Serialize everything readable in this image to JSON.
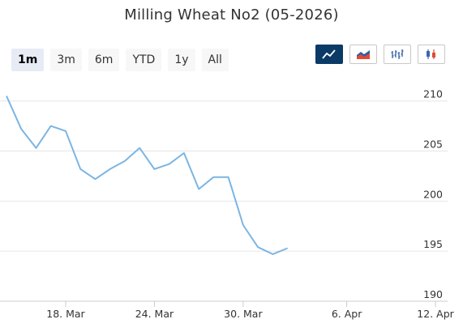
{
  "chart_data": {
    "type": "line",
    "title": "Milling Wheat No2 (05-2026)",
    "xlabel": "",
    "ylabel": "",
    "ylim": [
      190,
      212
    ],
    "yticks": [
      190,
      195,
      200,
      205,
      210
    ],
    "xticks": [
      {
        "label": "18. Mar",
        "x": 18
      },
      {
        "label": "24. Mar",
        "x": 24
      },
      {
        "label": "30. Mar",
        "x": 30
      },
      {
        "label": "6. Apr",
        "x": 37
      },
      {
        "label": "12. Apr",
        "x": 43
      }
    ],
    "xlim": [
      14,
      43.6
    ],
    "series": [
      {
        "color": "#7cb5e2",
        "points": [
          {
            "x": 14,
            "y": 210.5
          },
          {
            "x": 15,
            "y": 207.2
          },
          {
            "x": 16,
            "y": 205.3
          },
          {
            "x": 17,
            "y": 207.5
          },
          {
            "x": 18,
            "y": 207.0
          },
          {
            "x": 19,
            "y": 203.2
          },
          {
            "x": 20,
            "y": 202.2
          },
          {
            "x": 21,
            "y": 203.2
          },
          {
            "x": 22,
            "y": 204.0
          },
          {
            "x": 23,
            "y": 205.3
          },
          {
            "x": 24,
            "y": 203.2
          },
          {
            "x": 25,
            "y": 203.7
          },
          {
            "x": 26,
            "y": 204.8
          },
          {
            "x": 27,
            "y": 201.2
          },
          {
            "x": 28,
            "y": 202.4
          },
          {
            "x": 29,
            "y": 202.4
          },
          {
            "x": 30,
            "y": 197.6
          },
          {
            "x": 31,
            "y": 195.4
          },
          {
            "x": 32,
            "y": 194.7
          },
          {
            "x": 33,
            "y": 195.3
          }
        ]
      }
    ],
    "grid": true,
    "legend": "none"
  },
  "range_selector": {
    "buttons": [
      "1m",
      "3m",
      "6m",
      "YTD",
      "1y",
      "All"
    ],
    "selected": "1m"
  },
  "chart_types": [
    {
      "icon": "line-chart-icon",
      "active": true
    },
    {
      "icon": "area-chart-icon",
      "active": false
    },
    {
      "icon": "ohlc-chart-icon",
      "active": false
    },
    {
      "icon": "candlestick-chart-icon",
      "active": false
    }
  ],
  "colors": {
    "line": "#7cb5e2",
    "grid": "#e6e6e6",
    "active_type_bg": "#0b3a66",
    "active_range_bg": "#e6ebf5"
  }
}
